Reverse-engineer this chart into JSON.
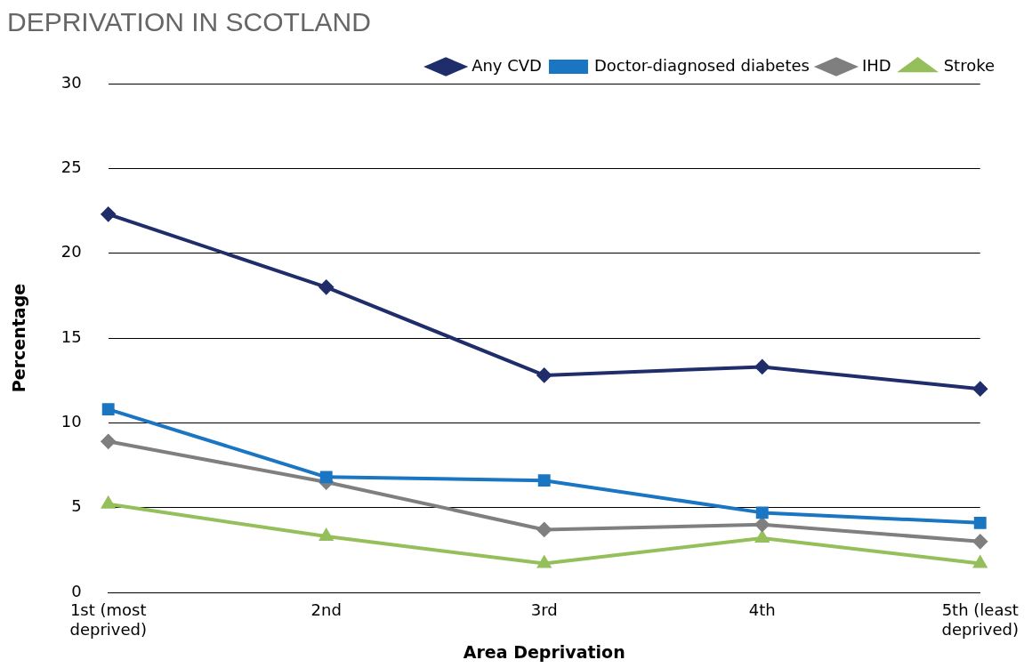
{
  "chart_data": {
    "type": "line",
    "title": "DEPRIVATION IN SCOTLAND",
    "xlabel": "Area Deprivation",
    "ylabel": "Percentage",
    "categories": [
      "1st (most deprived)",
      "2nd",
      "3rd",
      "4th",
      "5th (least deprived)"
    ],
    "series": [
      {
        "name": "Any CVD",
        "color": "#1f2d6b",
        "marker": "diamond",
        "values": [
          22.3,
          18.0,
          12.8,
          13.3,
          12.0
        ]
      },
      {
        "name": "Doctor-diagnosed diabetes",
        "color": "#1a76c2",
        "marker": "square",
        "values": [
          10.8,
          6.8,
          6.6,
          4.7,
          4.1
        ]
      },
      {
        "name": "IHD",
        "color": "#7f7f7f",
        "marker": "diamond",
        "values": [
          8.9,
          6.5,
          3.7,
          4.0,
          3.0
        ]
      },
      {
        "name": "Stroke",
        "color": "#95bf5a",
        "marker": "triangle",
        "values": [
          5.2,
          3.3,
          1.7,
          3.2,
          1.7
        ]
      }
    ],
    "ylim": [
      0,
      30
    ],
    "yticks": [
      0,
      5,
      10,
      15,
      20,
      25,
      30
    ],
    "grid": "y",
    "legend": "top right"
  }
}
